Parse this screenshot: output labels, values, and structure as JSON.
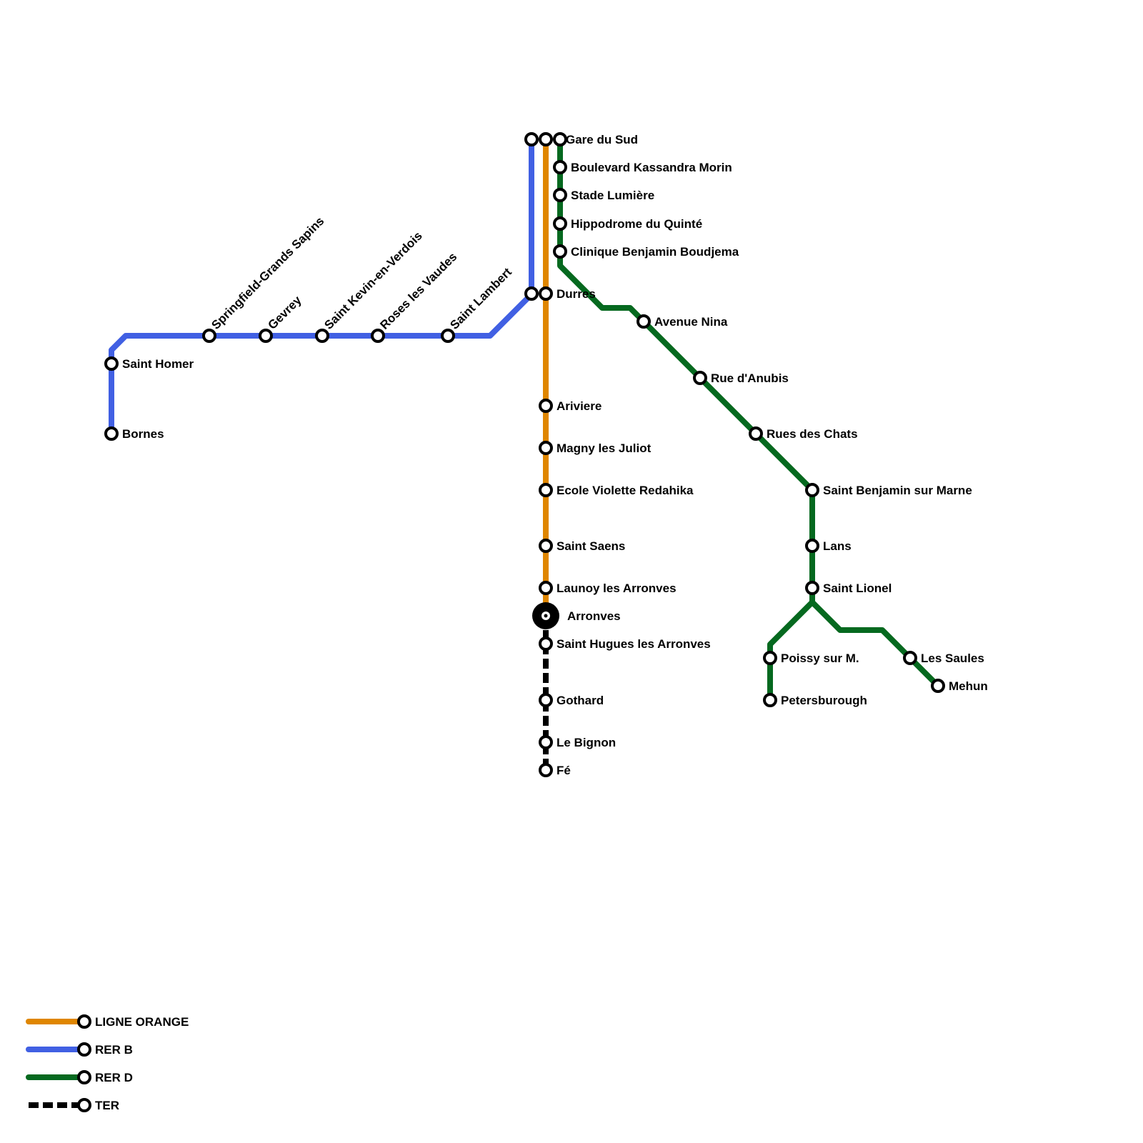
{
  "colors": {
    "orange": "#DF8600",
    "rer_b": "#4160E3",
    "rer_d": "#05691F",
    "ter": "#000000"
  },
  "stations": {
    "gare_du_sud": "Gare du Sud",
    "boulevard": "Boulevard Kassandra Morin",
    "stade": "Stade Lumière",
    "hippodrome": "Hippodrome du Quinté",
    "clinique": "Clinique Benjamin Boudjema",
    "durres": "Durres",
    "avenue_nina": "Avenue Nina",
    "rue_anubis": "Rue d'Anubis",
    "rues_chats": "Rues des Chats",
    "saint_benjamin": "Saint Benjamin sur Marne",
    "lans": "Lans",
    "saint_lionel": "Saint Lionel",
    "poissy": "Poissy sur M.",
    "petersburough": "Petersburough",
    "les_saules": "Les Saules",
    "mehun": "Mehun",
    "ariviere": "Ariviere",
    "magny": "Magny les Juliot",
    "ecole": "Ecole Violette Redahika",
    "saint_saens": "Saint Saens",
    "launoy": "Launoy les Arronves",
    "arronves": "Arronves",
    "saint_hugues": "Saint Hugues les Arronves",
    "gothard": "Gothard",
    "le_bignon": "Le Bignon",
    "fe": "Fé",
    "saint_homer": "Saint Homer",
    "bornes": "Bornes",
    "springfield": "Springfield-Grands Sapins",
    "gevrey": "Gevrey",
    "saint_kevin": "Saint Kevin-en-Verdois",
    "roses": "Roses les Vaudes",
    "saint_lambert": "Saint Lambert"
  },
  "legend": [
    {
      "label": "LIGNE ORANGE",
      "style": "solid"
    },
    {
      "label": "RER B",
      "style": "solid"
    },
    {
      "label": "RER D",
      "style": "solid"
    },
    {
      "label": "TER",
      "style": "dashed"
    }
  ]
}
